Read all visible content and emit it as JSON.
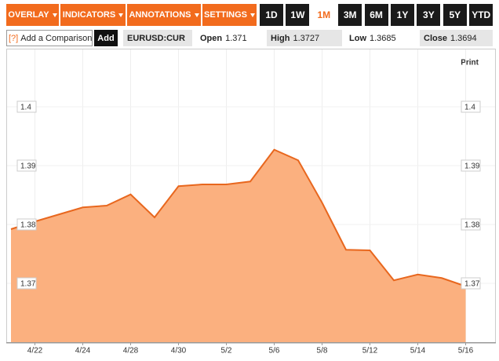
{
  "toolbar": {
    "menus": [
      "OVERLAY",
      "INDICATORS",
      "ANNOTATIONS",
      "SETTINGS"
    ],
    "ranges": [
      "1D",
      "1W",
      "1M",
      "3M",
      "6M",
      "1Y",
      "3Y",
      "5Y",
      "YTD"
    ],
    "active_range": 2
  },
  "comparison": {
    "hint": "[?]",
    "placeholder": "Add a Comparison",
    "button": "Add"
  },
  "quote": {
    "symbol": "EURUSD:CUR",
    "fields": [
      {
        "label": "Open",
        "value": 1.371
      },
      {
        "label": "High",
        "value": 1.3727
      },
      {
        "label": "Low",
        "value": 1.3685
      },
      {
        "label": "Close",
        "value": 1.3694
      }
    ]
  },
  "print": "Print",
  "chart_data": {
    "type": "area",
    "categories": [
      null,
      "4/22",
      null,
      "4/24",
      null,
      "4/28",
      null,
      "4/30",
      null,
      "5/2",
      null,
      "5/6",
      null,
      "5/8",
      null,
      "5/12",
      null,
      "5/14",
      null,
      "5/16"
    ],
    "values": [
      1.3792,
      1.3805,
      1.3817,
      1.3829,
      1.3832,
      1.3851,
      1.3812,
      1.3865,
      1.3868,
      1.3868,
      1.3873,
      1.3927,
      1.3909,
      1.3837,
      1.3757,
      1.3756,
      1.3705,
      1.3715,
      1.3709,
      1.3695
    ],
    "color": "#e8671e",
    "fill": "#fbb07f",
    "ylim": [
      1.36,
      1.41
    ],
    "yticks": [
      1.37,
      1.38,
      1.39,
      1.4
    ],
    "grid": true
  }
}
